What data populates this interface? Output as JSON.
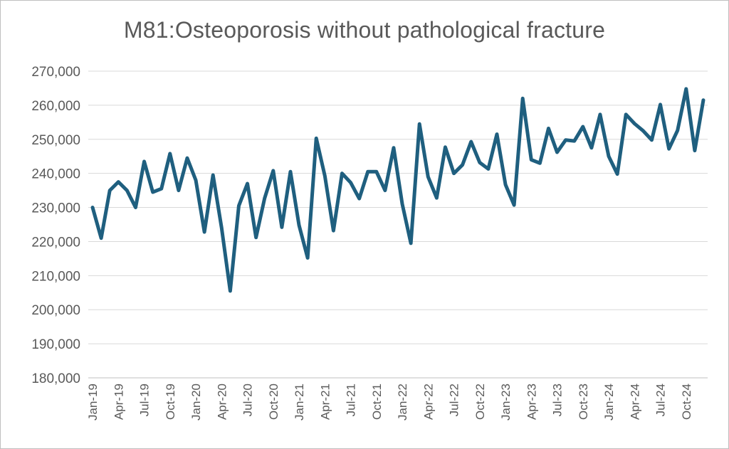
{
  "chart_data": {
    "type": "line",
    "title": "M81:Osteoporosis without pathological fracture",
    "xlabel": "",
    "ylabel": "",
    "ylim": [
      180000,
      270000
    ],
    "y_ticks": [
      "180,000",
      "190,000",
      "200,000",
      "210,000",
      "220,000",
      "230,000",
      "240,000",
      "250,000",
      "260,000",
      "270,000"
    ],
    "x_tick_labels": [
      "Jan-19",
      "Apr-19",
      "Jul-19",
      "Oct-19",
      "Jan-20",
      "Apr-20",
      "Jul-20",
      "Oct-20",
      "Jan-21",
      "Apr-21",
      "Jul-21",
      "Oct-21",
      "Jan-22",
      "Apr-22",
      "Jul-22",
      "Oct-22",
      "Jan-23",
      "Apr-23",
      "Jul-23",
      "Oct-23",
      "Jan-24",
      "Apr-24",
      "Jul-24",
      "Oct-24"
    ],
    "grid": true,
    "legend": "none",
    "line_color": "#1f5f7f",
    "x": [
      "Jan-19",
      "Feb-19",
      "Mar-19",
      "Apr-19",
      "May-19",
      "Jun-19",
      "Jul-19",
      "Aug-19",
      "Sep-19",
      "Oct-19",
      "Nov-19",
      "Dec-19",
      "Jan-20",
      "Feb-20",
      "Mar-20",
      "Apr-20",
      "May-20",
      "Jun-20",
      "Jul-20",
      "Aug-20",
      "Sep-20",
      "Oct-20",
      "Nov-20",
      "Dec-20",
      "Jan-21",
      "Feb-21",
      "Mar-21",
      "Apr-21",
      "May-21",
      "Jun-21",
      "Jul-21",
      "Aug-21",
      "Sep-21",
      "Oct-21",
      "Nov-21",
      "Dec-21",
      "Jan-22",
      "Feb-22",
      "Mar-22",
      "Apr-22",
      "May-22",
      "Jun-22",
      "Jul-22",
      "Aug-22",
      "Sep-22",
      "Oct-22",
      "Nov-22",
      "Dec-22",
      "Jan-23",
      "Feb-23",
      "Mar-23",
      "Apr-23",
      "May-23",
      "Jun-23",
      "Jul-23",
      "Aug-23",
      "Sep-23",
      "Oct-23",
      "Nov-23",
      "Dec-23",
      "Jan-24",
      "Feb-24",
      "Mar-24",
      "Apr-24",
      "May-24",
      "Jun-24",
      "Jul-24",
      "Aug-24",
      "Sep-24",
      "Oct-24",
      "Nov-24",
      "Dec-24"
    ],
    "series": [
      {
        "values": [
          230000,
          221000,
          235000,
          237500,
          235000,
          230000,
          243500,
          234500,
          235500,
          245800,
          235000,
          244500,
          238000,
          222800,
          239500,
          224000,
          205500,
          230500,
          237000,
          221200,
          232700,
          240800,
          224200,
          240500,
          224800,
          215200,
          250300,
          239300,
          223200,
          240000,
          237300,
          232600,
          240500,
          240500,
          235000,
          247500,
          231000,
          219500,
          254500,
          239000,
          232800,
          247700,
          240000,
          242500,
          249300,
          243200,
          241300,
          251500,
          236700,
          230700,
          262000,
          244000,
          243000,
          253200,
          246200,
          249800,
          249500,
          253700,
          247500,
          257300,
          245000,
          239800,
          257300,
          254600,
          252500,
          249800,
          260200,
          247200,
          252600,
          264800,
          246700,
          261500
        ]
      }
    ]
  }
}
